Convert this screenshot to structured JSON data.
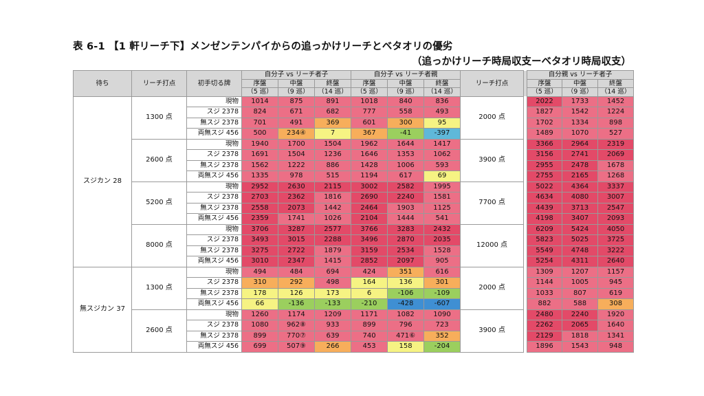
{
  "title": {
    "line1": "表 6-1 【1 軒リーチ下】メンゼンテンパイからの追っかけリーチとベタオリの優劣",
    "line2": "（追っかけリーチ時局収支ーベタオリ時局収支）"
  },
  "headers": {
    "wait": "待ち",
    "riichi_points": "リーチ打点",
    "first_tile": "初手切る牌",
    "group_a": "自分子 vs リーチ者子",
    "group_b": "自分子 vs リーチ者親",
    "riichi_points2": "リーチ打点",
    "group_c": "自分親 vs リーチ者子",
    "phases": [
      "序盤",
      "中盤",
      "終盤"
    ],
    "turns": [
      "（5 巡）",
      "（9 巡）",
      "（14 巡）"
    ]
  },
  "rows": [
    {
      "wait": "スジカン 28",
      "pts": "1300 点",
      "pts2": "2000 点",
      "tile": "現物",
      "a": [
        "1014",
        "875",
        "891"
      ],
      "b": [
        "1018",
        "840",
        "836"
      ],
      "c": [
        "2022",
        "1733",
        "1452"
      ]
    },
    {
      "tile": "スジ 2378",
      "a": [
        "824",
        "671",
        "682"
      ],
      "b": [
        "777",
        "558",
        "493"
      ],
      "c": [
        "1827",
        "1542",
        "1224"
      ]
    },
    {
      "tile": "無スジ 2378",
      "a": [
        "701",
        "491",
        "369"
      ],
      "b": [
        "601",
        "300",
        "95"
      ],
      "c": [
        "1702",
        "1334",
        "898"
      ]
    },
    {
      "tile": "両無スジ 456",
      "a": [
        "500",
        "234④",
        "7"
      ],
      "b": [
        "367",
        "-41",
        "-397"
      ],
      "c": [
        "1489",
        "1070",
        "527"
      ]
    },
    {
      "pts": "2600 点",
      "pts2": "3900 点",
      "tile": "現物",
      "a": [
        "1940",
        "1700",
        "1504"
      ],
      "b": [
        "1962",
        "1644",
        "1417"
      ],
      "c": [
        "3366",
        "2964",
        "2319"
      ]
    },
    {
      "tile": "スジ 2378",
      "a": [
        "1691",
        "1504",
        "1236"
      ],
      "b": [
        "1646",
        "1353",
        "1062"
      ],
      "c": [
        "3156",
        "2741",
        "2069"
      ]
    },
    {
      "tile": "無スジ 2378",
      "a": [
        "1562",
        "1222",
        "886"
      ],
      "b": [
        "1428",
        "1006",
        "593"
      ],
      "c": [
        "2955",
        "2478",
        "1678"
      ]
    },
    {
      "tile": "両無スジ 456",
      "a": [
        "1335",
        "978",
        "515"
      ],
      "b": [
        "1194",
        "617",
        "69"
      ],
      "c": [
        "2755",
        "2165",
        "1268"
      ]
    },
    {
      "pts": "5200 点",
      "pts2": "7700 点",
      "tile": "現物",
      "a": [
        "2952",
        "2630",
        "2115"
      ],
      "b": [
        "3002",
        "2582",
        "1995"
      ],
      "c": [
        "5022",
        "4364",
        "3337"
      ]
    },
    {
      "tile": "スジ 2378",
      "a": [
        "2703",
        "2362",
        "1816"
      ],
      "b": [
        "2690",
        "2240",
        "1581"
      ],
      "c": [
        "4634",
        "4080",
        "3007"
      ]
    },
    {
      "tile": "無スジ 2378",
      "a": [
        "2558",
        "2073",
        "1442"
      ],
      "b": [
        "2464",
        "1903",
        "1125"
      ],
      "c": [
        "4439",
        "3713",
        "2547"
      ]
    },
    {
      "tile": "両無スジ 456",
      "a": [
        "2359",
        "1741",
        "1026"
      ],
      "b": [
        "2104",
        "1444",
        "541"
      ],
      "c": [
        "4198",
        "3407",
        "2093"
      ]
    },
    {
      "pts": "8000 点",
      "pts2": "12000 点",
      "tile": "現物",
      "a": [
        "3706",
        "3287",
        "2577"
      ],
      "b": [
        "3766",
        "3283",
        "2432"
      ],
      "c": [
        "6209",
        "5424",
        "4050"
      ]
    },
    {
      "tile": "スジ 2378",
      "a": [
        "3493",
        "3015",
        "2288"
      ],
      "b": [
        "3496",
        "2870",
        "2035"
      ],
      "c": [
        "5823",
        "5025",
        "3725"
      ]
    },
    {
      "tile": "無スジ 2378",
      "a": [
        "3275",
        "2722",
        "1879"
      ],
      "b": [
        "3159",
        "2534",
        "1528"
      ],
      "c": [
        "5549",
        "4748",
        "3222"
      ]
    },
    {
      "tile": "両無スジ 456",
      "a": [
        "3010",
        "2347",
        "1415"
      ],
      "b": [
        "2852",
        "2097",
        "905"
      ],
      "c": [
        "5254",
        "4311",
        "2640"
      ]
    },
    {
      "wait": "無スジカン 37",
      "pts": "1300 点",
      "pts2": "2000 点",
      "tile": "現物",
      "a": [
        "494",
        "484",
        "694"
      ],
      "b": [
        "424",
        "351",
        "616"
      ],
      "c": [
        "1309",
        "1207",
        "1157"
      ]
    },
    {
      "tile": "スジ 2378",
      "a": [
        "310",
        "292",
        "498"
      ],
      "b": [
        "164",
        "136",
        "301"
      ],
      "c": [
        "1144",
        "1005",
        "945"
      ]
    },
    {
      "tile": "無スジ 2378",
      "a": [
        "178",
        "126",
        "173"
      ],
      "b": [
        "6",
        "-106",
        "-109"
      ],
      "c": [
        "1033",
        "807",
        "619"
      ]
    },
    {
      "tile": "両無スジ 456",
      "a": [
        "66",
        "-136",
        "-133"
      ],
      "b": [
        "-210",
        "-428",
        "-607"
      ],
      "c": [
        "882",
        "588",
        "308"
      ]
    },
    {
      "pts": "2600 点",
      "pts2": "3900 点",
      "tile": "現物",
      "a": [
        "1260",
        "1174",
        "1209"
      ],
      "b": [
        "1171",
        "1082",
        "1090"
      ],
      "c": [
        "2480",
        "2240",
        "1920"
      ]
    },
    {
      "tile": "スジ 2378",
      "a": [
        "1080",
        "962⑧",
        "933"
      ],
      "b": [
        "899",
        "796",
        "723"
      ],
      "c": [
        "2262",
        "2065",
        "1640"
      ]
    },
    {
      "tile": "無スジ 2378",
      "a": [
        "899",
        "770⑦",
        "639"
      ],
      "b": [
        "740",
        "471⑥",
        "352"
      ],
      "c": [
        "2129",
        "1818",
        "1341"
      ]
    },
    {
      "tile": "両無スジ 456",
      "a": [
        "699",
        "507⑨",
        "266"
      ],
      "b": [
        "453",
        "158",
        "-204"
      ],
      "c": [
        "1896",
        "1543",
        "948"
      ]
    }
  ],
  "colors": {
    "red": "#e34a68",
    "pink": "#ec6f86",
    "yellow": "#f6f383",
    "orange": "#f7ae5b",
    "green": "#9bcf5e",
    "blue": "#3f8fd3",
    "cyan": "#5fb8d9"
  }
}
